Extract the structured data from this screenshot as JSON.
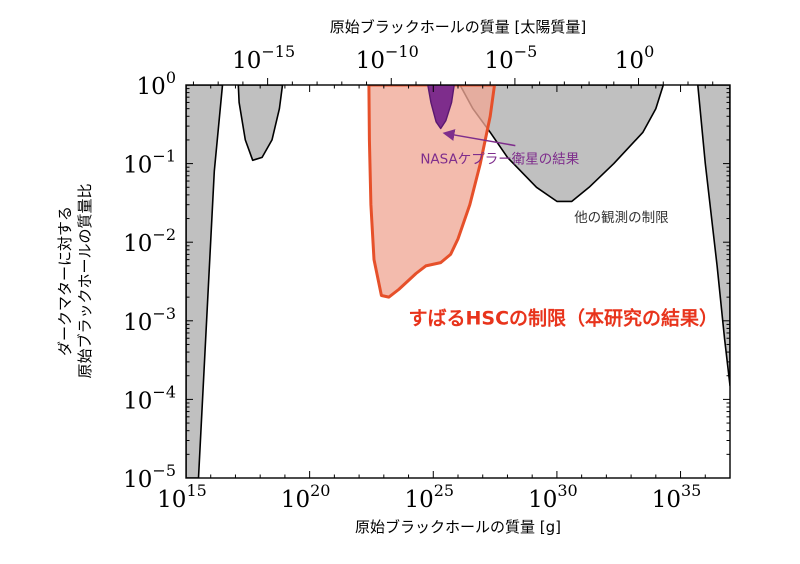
{
  "chart_data": {
    "type": "area",
    "title": "",
    "xlabel": "原始ブラックホールの質量 [g]",
    "ylabel": [
      "ダークマターに対する",
      "原始ブラックホールの質量比"
    ],
    "x2label": "原始ブラックホールの質量 [太陽質量]",
    "x_scale": "log",
    "y_scale": "log",
    "xlim": [
      1000000000000000.0,
      1e+37
    ],
    "ylim": [
      1e-05,
      1
    ],
    "x2lim": [
      5e-19,
      5000.0
    ],
    "x_ticks": [
      {
        "value": 1000000000000000.0,
        "base": "10",
        "exp": "15"
      },
      {
        "value": 1e+20,
        "base": "10",
        "exp": "20"
      },
      {
        "value": 1e+25,
        "base": "10",
        "exp": "25"
      },
      {
        "value": 1e+30,
        "base": "10",
        "exp": "30"
      },
      {
        "value": 1e+35,
        "base": "10",
        "exp": "35"
      }
    ],
    "y_ticks": [
      {
        "value": 1e-05,
        "base": "10",
        "exp": "−5"
      },
      {
        "value": 0.0001,
        "base": "10",
        "exp": "−4"
      },
      {
        "value": 0.001,
        "base": "10",
        "exp": "−3"
      },
      {
        "value": 0.01,
        "base": "10",
        "exp": "−2"
      },
      {
        "value": 0.1,
        "base": "10",
        "exp": "−1"
      },
      {
        "value": 1,
        "base": "10",
        "exp": "0"
      }
    ],
    "x2_ticks": [
      {
        "value": 1e-15,
        "base": "10",
        "exp": "−15"
      },
      {
        "value": 1e-10,
        "base": "10",
        "exp": "−10"
      },
      {
        "value": 1e-05,
        "base": "10",
        "exp": "−5"
      },
      {
        "value": 1,
        "base": "10",
        "exp": "0"
      }
    ],
    "series": [
      {
        "name": "他の観測の制限",
        "color": "#c0c0c0",
        "edge": "#000000",
        "regions": [
          [
            [
              1000000000000000.0,
              1
            ],
            [
              1000000000000000.0,
              1e-05
            ],
            [
              1000000000000000.0,
              1e-05
            ],
            [
              3200000000000000.0,
              1e-05
            ],
            [
              1.4e+16,
              0.08
            ],
            [
              3e+16,
              1
            ],
            [
              1000000000000000.0,
              1
            ]
          ],
          [
            [
              1.3e+17,
              1
            ],
            [
              1.4e+17,
              0.6
            ],
            [
              2.5e+17,
              0.2
            ],
            [
              5e+17,
              0.11
            ],
            [
              1.2e+18,
              0.12
            ],
            [
              3e+18,
              0.2
            ],
            [
              6e+18,
              0.5
            ],
            [
              8e+18,
              1
            ],
            [
              1.3e+17,
              1
            ]
          ],
          [
            [
              1.2e+26,
              1
            ],
            [
              4e+26,
              0.5
            ],
            [
              2e+27,
              0.25
            ],
            [
              1e+28,
              0.12
            ],
            [
              1.5e+29,
              0.05
            ],
            [
              1e+30,
              0.033
            ],
            [
              4e+30,
              0.033
            ],
            [
              2e+31,
              0.05
            ],
            [
              2e+32,
              0.1
            ],
            [
              3e+33,
              0.25
            ],
            [
              1e+34,
              0.5
            ],
            [
              2e+34,
              1
            ],
            [
              1.2e+26,
              1
            ]
          ],
          [
            [
              5e+35,
              1
            ],
            [
              1e+36,
              0.1
            ],
            [
              3e+36,
              0.005
            ],
            [
              6e+36,
              0.0006
            ],
            [
              1e+37,
              0.00015
            ],
            [
              1e+37,
              1
            ],
            [
              5e+35,
              1
            ]
          ]
        ]
      },
      {
        "name": "すばるHSCの制限（本研究の結果）",
        "color": "#f0a896",
        "edge": "#e6502a",
        "points": [
          [
            2.5e+22,
            1
          ],
          [
            2.6e+22,
            0.2
          ],
          [
            3e+22,
            0.03
          ],
          [
            4e+22,
            0.006
          ],
          [
            8e+22,
            0.0021
          ],
          [
            1.6e+23,
            0.002
          ],
          [
            4e+23,
            0.0025
          ],
          [
            2e+24,
            0.004
          ],
          [
            5e+24,
            0.005
          ],
          [
            2e+25,
            0.0055
          ],
          [
            5e+25,
            0.007
          ],
          [
            1e+26,
            0.011
          ],
          [
            3e+26,
            0.03
          ],
          [
            8e+26,
            0.1
          ],
          [
            2e+27,
            0.4
          ],
          [
            3e+27,
            1
          ]
        ]
      },
      {
        "name": "NASAケプラー衛星の結果",
        "color": "#7e2d8c",
        "edge": "#5a1870",
        "points": [
          [
            6e+24,
            1
          ],
          [
            8e+24,
            0.6
          ],
          [
            1.3e+25,
            0.34
          ],
          [
            2e+25,
            0.28
          ],
          [
            3.2e+25,
            0.35
          ],
          [
            5.5e+25,
            0.6
          ],
          [
            7e+25,
            1
          ]
        ]
      }
    ],
    "annotations": [
      {
        "text": "NASAケプラー衛星の結果",
        "color": "#7e2d8c",
        "x": 3e+24,
        "y": 0.1,
        "arrow_to": [
          1.7e+25,
          0.27
        ]
      },
      {
        "text": "他の観測の制限",
        "color": "#333333",
        "x": 5e+30,
        "y": 0.018
      },
      {
        "text": "すばるHSCの制限（本研究の結果）",
        "color": "#e8341c",
        "x": 1e+24,
        "y": 0.0009
      }
    ]
  }
}
